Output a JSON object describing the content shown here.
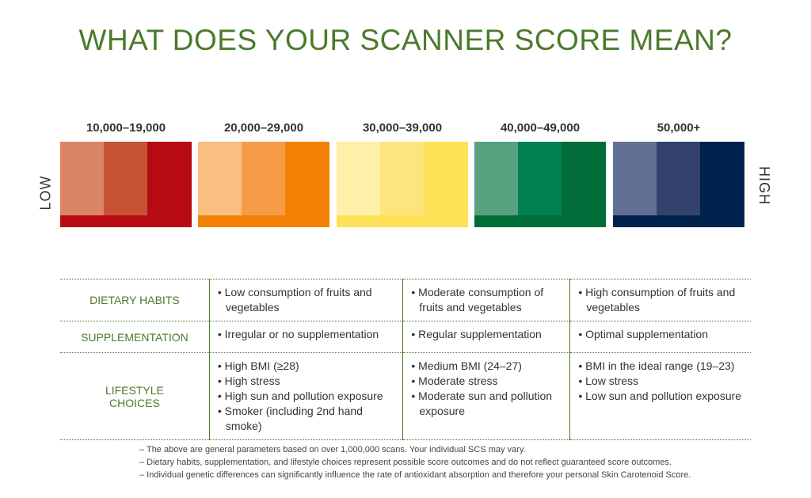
{
  "title": "WHAT DOES YOUR SCANNER SCORE MEAN?",
  "scale": {
    "low": "LOW",
    "high": "HIGH",
    "ranges": [
      {
        "label": "10,000–19,000",
        "colors": [
          "#dc8466",
          "#c75235",
          "#b70a12"
        ]
      },
      {
        "label": "20,000–29,000",
        "colors": [
          "#f9bf80",
          "#f69c48",
          "#f38204"
        ]
      },
      {
        "label": "30,000–39,000",
        "colors": [
          "#fdf0a8",
          "#fde47c",
          "#fee154"
        ]
      },
      {
        "label": "40,000–49,000",
        "colors": [
          "#57a17f",
          "#008152",
          "#006d38"
        ]
      },
      {
        "label": "50,000+",
        "colors": [
          "#627193",
          "#33426d",
          "#00234d"
        ]
      }
    ]
  },
  "table": {
    "rows": [
      {
        "label": "DIETARY HABITS",
        "cols": [
          [
            "• Low consumption of fruits and vegetables"
          ],
          [
            "• Moderate consumption of fruits and vegetables"
          ],
          [
            "• High consumption of fruits and vegetables"
          ]
        ]
      },
      {
        "label": "SUPPLEMENTATION",
        "cols": [
          [
            "• Irregular or no supplementation"
          ],
          [
            "• Regular supplementation"
          ],
          [
            "• Optimal supplementation"
          ]
        ]
      },
      {
        "label": "LIFESTYLE CHOICES",
        "cols": [
          [
            "• High BMI (≥28)",
            "• High stress",
            "• High sun and pollution exposure",
            "• Smoker (including 2nd hand smoke)"
          ],
          [
            "• Medium BMI (24–27)",
            "• Moderate stress",
            "• Moderate sun and pollution exposure"
          ],
          [
            "• BMI in the ideal range (19–23)",
            "• Low stress",
            "• Low sun and pollution exposure"
          ]
        ]
      }
    ]
  },
  "notes": [
    "– The above are general parameters based on over 1,000,000 scans. Your individual SCS may vary.",
    "– Dietary habits, supplementation, and lifestyle choices represent possible score outcomes and do not reflect guaranteed score outcomes.",
    "– Individual genetic differences can significantly influence the rate of antioxidant absorption and therefore your personal Skin Carotenoid Score."
  ]
}
